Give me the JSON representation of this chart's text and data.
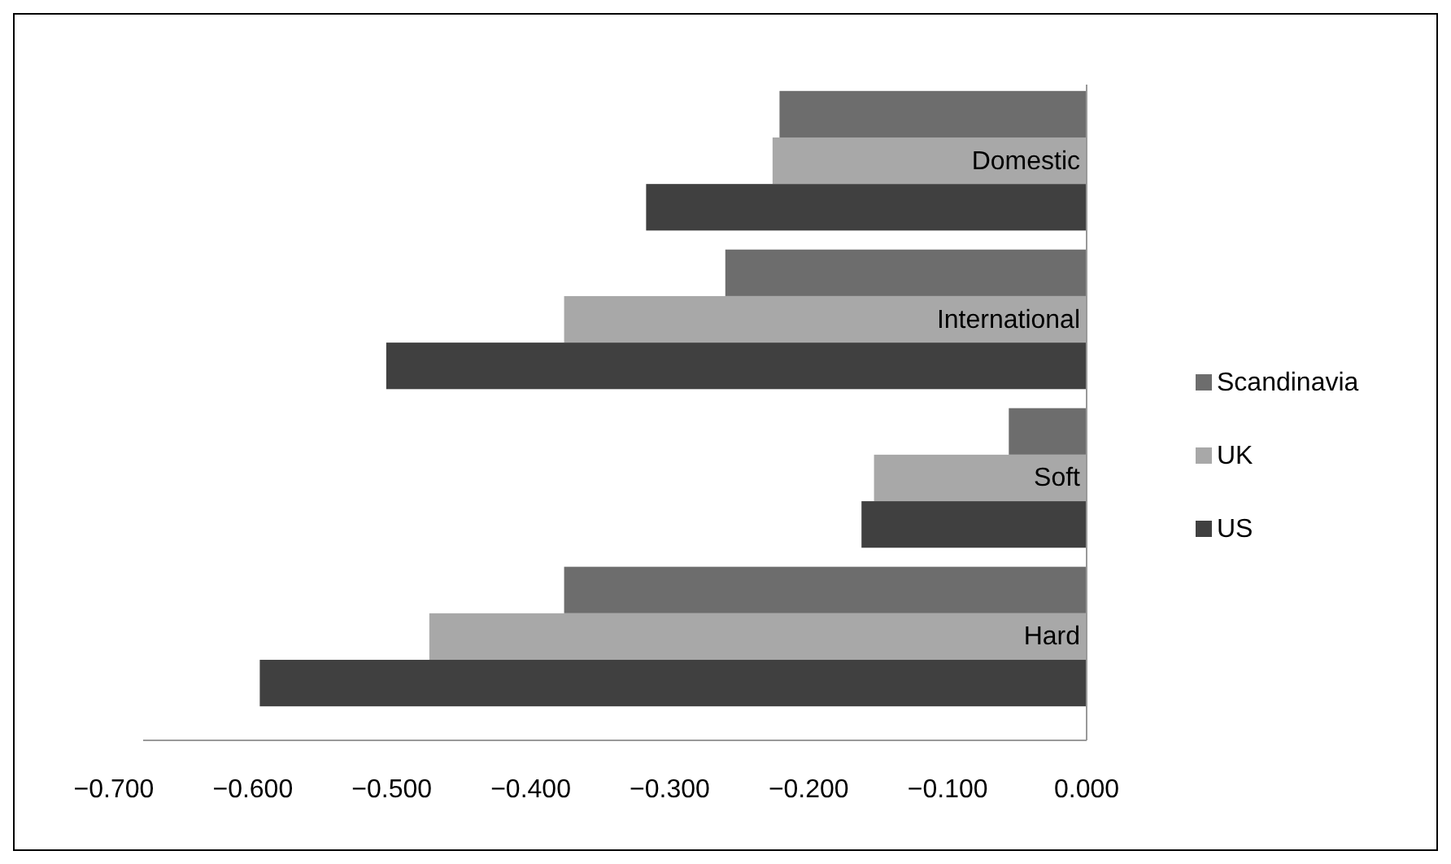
{
  "chart_data": {
    "type": "bar",
    "orientation": "horizontal",
    "categories": [
      "Domestic",
      "International",
      "Soft",
      "Hard"
    ],
    "series": [
      {
        "name": "Scandinavia",
        "color": "#6d6d6d",
        "values": [
          -0.221,
          -0.26,
          -0.056,
          -0.376
        ]
      },
      {
        "name": "UK",
        "color": "#a8a8a8",
        "values": [
          -0.226,
          -0.376,
          -0.153,
          -0.473
        ]
      },
      {
        "name": "US",
        "color": "#404040",
        "values": [
          -0.317,
          -0.504,
          -0.162,
          -0.595
        ]
      }
    ],
    "xlim": [
      -0.7,
      0
    ],
    "xticks": [
      {
        "value": -0.7,
        "label": "−0.700"
      },
      {
        "value": -0.6,
        "label": "−0.600"
      },
      {
        "value": -0.5,
        "label": "−0.500"
      },
      {
        "value": -0.4,
        "label": "−0.400"
      },
      {
        "value": -0.3,
        "label": "−0.300"
      },
      {
        "value": -0.2,
        "label": "−0.200"
      },
      {
        "value": -0.1,
        "label": "−0.100"
      },
      {
        "value": 0,
        "label": "0.000"
      }
    ],
    "grid": false,
    "legend": "right"
  }
}
